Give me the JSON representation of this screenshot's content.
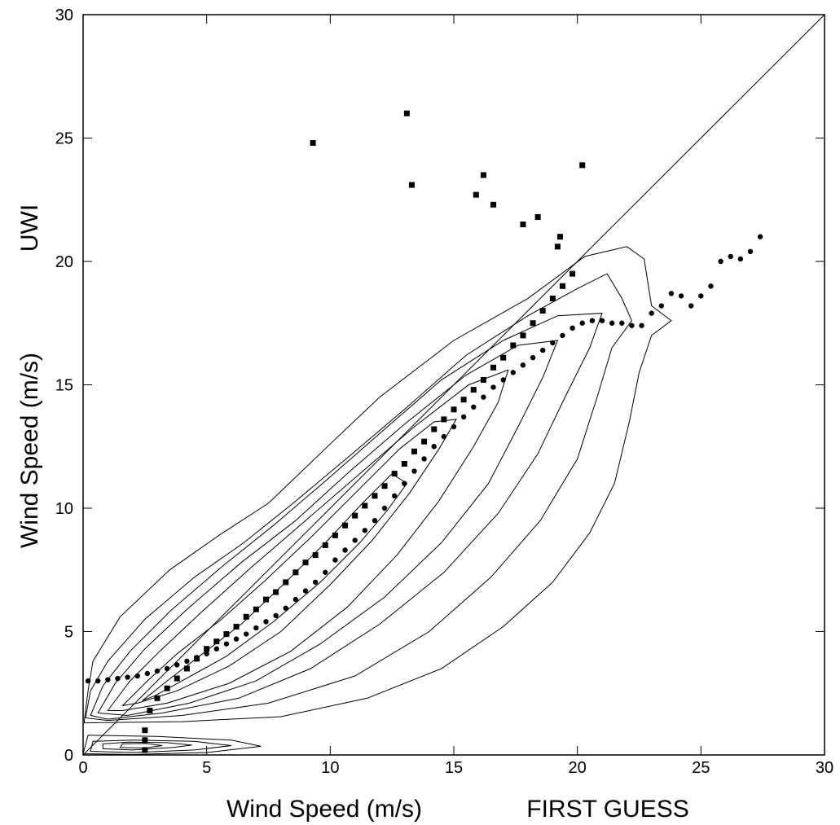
{
  "chart_data": {
    "type": "scatter",
    "title": "",
    "xlabel": "Wind Speed (m/s)",
    "xlabel_suffix": "FIRST GUESS",
    "ylabel": "Wind Speed (m/s)",
    "ylabel_suffix": "UWI",
    "xlim": [
      0,
      30
    ],
    "ylim": [
      0,
      30
    ],
    "x_ticks": [
      "0",
      "5",
      "10",
      "15",
      "20",
      "25",
      "30"
    ],
    "y_ticks": [
      "0",
      "5",
      "10",
      "15",
      "20",
      "25",
      "30"
    ],
    "grid": false,
    "reference_line": {
      "name": "1:1 line",
      "from": [
        0,
        0
      ],
      "to": [
        30,
        30
      ]
    },
    "density_contours": {
      "levels": 7,
      "shading": "stippled, denser toward the centre",
      "rings": [
        [
          [
            0.05,
            1.4
          ],
          [
            0.2,
            2.6
          ],
          [
            0.4,
            3.8
          ],
          [
            1.5,
            5.6
          ],
          [
            3.5,
            7.5
          ],
          [
            5.5,
            8.9
          ],
          [
            7.5,
            10.2
          ],
          [
            10,
            12.6
          ],
          [
            12,
            14.5
          ],
          [
            15,
            16.8
          ],
          [
            18,
            18.5
          ],
          [
            20.3,
            20.2
          ],
          [
            22,
            20.6
          ],
          [
            22.7,
            20.1
          ],
          [
            23,
            18.2
          ],
          [
            23.8,
            17.6
          ],
          [
            23,
            17
          ],
          [
            22.5,
            15.5
          ],
          [
            22.1,
            13.5
          ],
          [
            21.5,
            11
          ],
          [
            20.5,
            9
          ],
          [
            19,
            7
          ],
          [
            17,
            5.2
          ],
          [
            14.5,
            3.5
          ],
          [
            11.5,
            2.3
          ],
          [
            8,
            1.55
          ],
          [
            4,
            1.35
          ],
          [
            0.05,
            1.3
          ]
        ],
        [
          [
            0.1,
            1.5
          ],
          [
            0.3,
            2.6
          ],
          [
            1,
            3.8
          ],
          [
            2.5,
            5.5
          ],
          [
            4.5,
            7.2
          ],
          [
            6.5,
            8.6
          ],
          [
            8.5,
            10.2
          ],
          [
            11,
            12.3
          ],
          [
            13,
            14
          ],
          [
            15.5,
            16.2
          ],
          [
            18,
            17.8
          ],
          [
            20,
            18.9
          ],
          [
            21.2,
            19.5
          ],
          [
            21.8,
            18.5
          ],
          [
            22.2,
            17.6
          ],
          [
            21.4,
            16.5
          ],
          [
            20.8,
            14.5
          ],
          [
            20,
            12
          ],
          [
            18.5,
            9.5
          ],
          [
            16.5,
            7.2
          ],
          [
            14,
            5
          ],
          [
            11,
            3.2
          ],
          [
            7.5,
            2.1
          ],
          [
            4,
            1.6
          ],
          [
            1,
            1.4
          ]
        ],
        [
          [
            0.3,
            1.6
          ],
          [
            0.8,
            2.8
          ],
          [
            1.9,
            4.2
          ],
          [
            3.6,
            5.9
          ],
          [
            5.7,
            7.7
          ],
          [
            7.7,
            9.3
          ],
          [
            9.8,
            11.1
          ],
          [
            12.2,
            13.2
          ],
          [
            14.5,
            15.2
          ],
          [
            17,
            16.8
          ],
          [
            19.2,
            17.8
          ],
          [
            21,
            17.9
          ],
          [
            20.5,
            16.5
          ],
          [
            19.5,
            14.5
          ],
          [
            18.4,
            12.2
          ],
          [
            16.8,
            9.8
          ],
          [
            14.6,
            7.4
          ],
          [
            12,
            5.3
          ],
          [
            9.2,
            3.5
          ],
          [
            6.3,
            2.3
          ],
          [
            3.2,
            1.7
          ],
          [
            1,
            1.45
          ]
        ],
        [
          [
            0.6,
            1.7
          ],
          [
            1.3,
            2.9
          ],
          [
            2.5,
            4.3
          ],
          [
            4.2,
            5.9
          ],
          [
            6.4,
            7.8
          ],
          [
            8.6,
            9.5
          ],
          [
            10.8,
            11.5
          ],
          [
            13,
            13.4
          ],
          [
            15.5,
            15.4
          ],
          [
            17.6,
            16.6
          ],
          [
            19.2,
            16.8
          ],
          [
            18.6,
            15.3
          ],
          [
            17.6,
            13.3
          ],
          [
            16.4,
            11
          ],
          [
            14.5,
            8.6
          ],
          [
            12.2,
            6.4
          ],
          [
            9.6,
            4.5
          ],
          [
            7,
            3
          ],
          [
            4.3,
            2.1
          ],
          [
            1.8,
            1.6
          ]
        ],
        [
          [
            1,
            1.8
          ],
          [
            1.9,
            3
          ],
          [
            3.1,
            4.2
          ],
          [
            4.8,
            5.8
          ],
          [
            6.8,
            7.6
          ],
          [
            9,
            9.5
          ],
          [
            11.2,
            11.4
          ],
          [
            13.4,
            13.3
          ],
          [
            15.6,
            15
          ],
          [
            17.2,
            15.6
          ],
          [
            16.8,
            14.3
          ],
          [
            15.8,
            12.5
          ],
          [
            14.4,
            10.3
          ],
          [
            12.7,
            8.1
          ],
          [
            10.7,
            6
          ],
          [
            8.4,
            4.2
          ],
          [
            5.9,
            2.9
          ],
          [
            3.4,
            2.1
          ],
          [
            1.6,
            1.8
          ]
        ],
        [
          [
            1.6,
            2
          ],
          [
            2.6,
            3
          ],
          [
            3.8,
            4.1
          ],
          [
            5.6,
            5.5
          ],
          [
            7.4,
            7.1
          ],
          [
            9.3,
            8.9
          ],
          [
            11,
            10.6
          ],
          [
            12.8,
            12.4
          ],
          [
            14.2,
            13.5
          ],
          [
            15.1,
            13.6
          ],
          [
            14.4,
            12.4
          ],
          [
            13.2,
            10.6
          ],
          [
            11.7,
            8.7
          ],
          [
            10,
            6.9
          ],
          [
            8,
            5
          ],
          [
            5.9,
            3.6
          ],
          [
            3.8,
            2.6
          ],
          [
            2.2,
            2.1
          ]
        ],
        [
          [
            2.4,
            2.2
          ],
          [
            3.4,
            3
          ],
          [
            4.7,
            4
          ],
          [
            6.4,
            5.3
          ],
          [
            8.2,
            7
          ],
          [
            9.9,
            8.7
          ],
          [
            11.3,
            10.2
          ],
          [
            12.5,
            11.4
          ],
          [
            13.1,
            11
          ],
          [
            12.3,
            9.9
          ],
          [
            11.2,
            8.6
          ],
          [
            9.6,
            7
          ],
          [
            7.7,
            5.4
          ],
          [
            5.8,
            4
          ],
          [
            4,
            3
          ],
          [
            2.9,
            2.4
          ]
        ]
      ],
      "low_band_rings": [
        [
          [
            0,
            0.05
          ],
          [
            2,
            0.02
          ],
          [
            5,
            0.1
          ],
          [
            7.2,
            0.35
          ],
          [
            6,
            0.6
          ],
          [
            3,
            0.75
          ],
          [
            0.2,
            0.8
          ]
        ],
        [
          [
            0.3,
            0.15
          ],
          [
            2,
            0.1
          ],
          [
            4.5,
            0.2
          ],
          [
            6,
            0.38
          ],
          [
            4.5,
            0.55
          ],
          [
            2,
            0.6
          ],
          [
            0.4,
            0.55
          ]
        ],
        [
          [
            0.8,
            0.25
          ],
          [
            2,
            0.2
          ],
          [
            3.6,
            0.3
          ],
          [
            4.4,
            0.4
          ],
          [
            3.4,
            0.5
          ],
          [
            1.8,
            0.52
          ],
          [
            0.8,
            0.45
          ]
        ],
        [
          [
            1.5,
            0.3
          ],
          [
            2.5,
            0.28
          ],
          [
            3.2,
            0.38
          ],
          [
            2.5,
            0.47
          ],
          [
            1.6,
            0.45
          ]
        ]
      ]
    },
    "series": [
      {
        "marker": "circle",
        "x": [
          0.2,
          0.6,
          1.0,
          1.4,
          1.8,
          2.2,
          2.6,
          3.0,
          3.4,
          3.8,
          4.2,
          4.6,
          5.0,
          5.4,
          5.8,
          6.2,
          6.6,
          7.0,
          7.4,
          7.8,
          8.2,
          8.6,
          9.0,
          9.4,
          9.8,
          10.2,
          10.6,
          11.0,
          11.4,
          11.8,
          12.2,
          12.6,
          13.0,
          13.4,
          13.8,
          14.2,
          14.6,
          15.0,
          15.4,
          15.8,
          16.2,
          16.6,
          17.0,
          17.4,
          17.8,
          18.2,
          18.6,
          19.0,
          19.4,
          19.8,
          20.2,
          20.6,
          21.0,
          21.4,
          21.8,
          22.2,
          22.6,
          23.0,
          23.4,
          23.8,
          24.2,
          24.6,
          25.0,
          25.4,
          25.8,
          26.2,
          26.6,
          27.0,
          27.4
        ],
        "y": [
          3.0,
          3.0,
          3.05,
          3.1,
          3.15,
          3.2,
          3.3,
          3.4,
          3.5,
          3.65,
          3.8,
          3.95,
          4.1,
          4.3,
          4.5,
          4.7,
          4.9,
          5.15,
          5.4,
          5.65,
          5.95,
          6.3,
          6.65,
          7.0,
          7.4,
          7.9,
          8.3,
          8.7,
          9.1,
          9.5,
          10.0,
          10.5,
          11.0,
          11.5,
          12.0,
          12.5,
          12.9,
          13.3,
          13.7,
          14.1,
          14.5,
          14.9,
          15.2,
          15.5,
          15.8,
          16.1,
          16.4,
          16.7,
          17.0,
          17.3,
          17.5,
          17.6,
          17.6,
          17.5,
          17.5,
          17.4,
          17.4,
          17.9,
          18.2,
          18.7,
          18.6,
          18.2,
          18.6,
          19.0,
          20.0,
          20.2,
          20.1,
          20.4,
          21.0
        ]
      },
      {
        "marker": "square",
        "x": [
          2.5,
          2.5,
          2.5,
          2.7,
          3.0,
          3.4,
          3.8,
          4.2,
          4.6,
          5.0,
          5.4,
          5.8,
          6.2,
          6.6,
          7.0,
          7.4,
          7.8,
          8.2,
          8.6,
          9.0,
          9.4,
          9.8,
          10.2,
          10.6,
          11.0,
          11.4,
          11.8,
          12.2,
          12.6,
          13.0,
          13.4,
          13.8,
          14.2,
          14.6,
          15.0,
          15.4,
          15.8,
          16.2,
          16.6,
          17.0,
          17.4,
          17.8,
          18.2,
          18.6,
          19.0,
          19.4,
          19.8,
          19.2,
          19.3,
          18.4,
          17.8,
          16.6,
          16.2,
          15.9,
          13.3,
          13.1,
          9.3,
          20.2
        ],
        "y": [
          0.2,
          0.6,
          1.0,
          1.8,
          2.3,
          2.7,
          3.1,
          3.5,
          3.9,
          4.3,
          4.6,
          4.9,
          5.2,
          5.6,
          5.9,
          6.3,
          6.6,
          7.0,
          7.4,
          7.8,
          8.1,
          8.5,
          8.9,
          9.3,
          9.7,
          10.1,
          10.5,
          10.9,
          11.4,
          11.8,
          12.3,
          12.7,
          13.2,
          13.6,
          14.0,
          14.4,
          14.8,
          15.2,
          15.7,
          16.1,
          16.6,
          17.0,
          17.5,
          18.0,
          18.5,
          19.0,
          19.5,
          20.6,
          21.0,
          21.8,
          21.5,
          22.3,
          23.5,
          22.7,
          23.1,
          26.0,
          24.8,
          23.9
        ]
      }
    ]
  }
}
